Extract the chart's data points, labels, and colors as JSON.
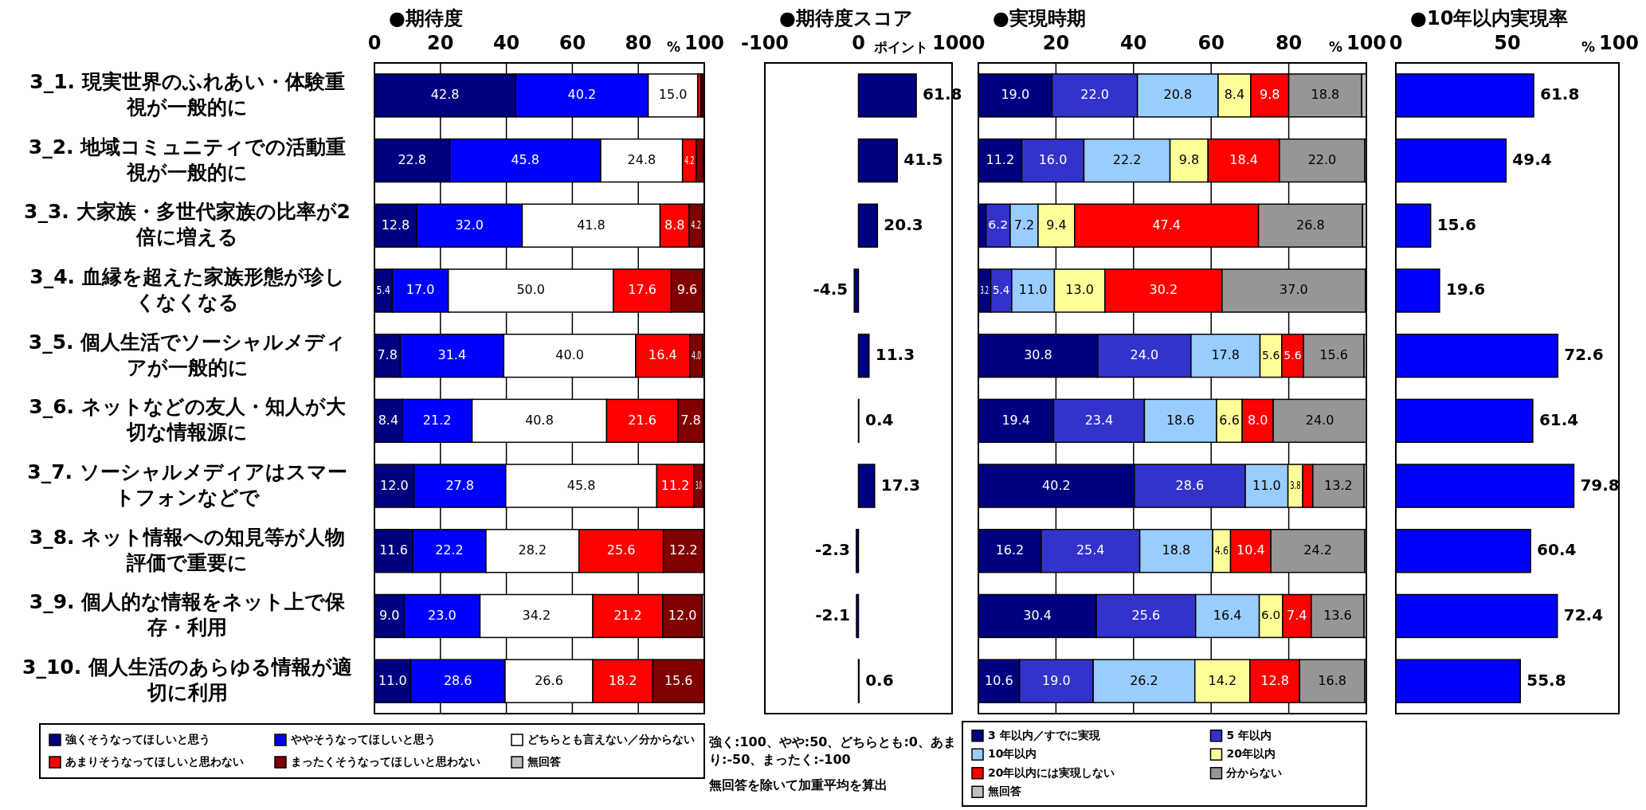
{
  "chart_data": [
    {
      "type": "bar",
      "orientation": "horizontal",
      "stacked": true,
      "title": "●期待度",
      "xlabel": "%",
      "xlim": [
        0,
        100
      ],
      "xticks": [
        0,
        20,
        40,
        60,
        80,
        100
      ],
      "grid": "x",
      "legend": "bottom",
      "categories": [
        "3_1. 現実世界のふれあい・体験重視が一般的に",
        "3_2. 地域コミュニティでの活動重視が一般的に",
        "3_3. 大家族・多世代家族の比率が2倍に増える",
        "3_4. 血縁を超えた家族形態が珍しくなくなる",
        "3_5. 個人生活でソーシャルメディアが一般的に",
        "3_6. ネットなどの友人・知人が大切な情報源に",
        "3_7. ソーシャルメディアはスマートフォンなどで",
        "3_8. ネット情報への知見等が人物評価で重要に",
        "3_9. 個人的な情報をネット上で保存・利用",
        "3_10. 個人生活のあらゆる情報が適切に利用"
      ],
      "series": [
        {
          "name": "強くそうなってほしいと思う",
          "color": "#000080",
          "values": [
            42.8,
            22.8,
            12.8,
            5.4,
            7.8,
            8.4,
            12.0,
            11.6,
            9.0,
            11.0
          ],
          "value_labels": [
            "42.8",
            "22.8",
            "12.8",
            "5.4",
            "7.8",
            "8.4",
            "12.0",
            "11.6",
            "9.0",
            "11.0"
          ]
        },
        {
          "name": "ややそうなってほしいと思う",
          "color": "#0000ff",
          "values": [
            40.2,
            45.8,
            32.0,
            17.0,
            31.4,
            21.2,
            27.8,
            22.2,
            23.0,
            28.6
          ],
          "value_labels": [
            "40.2",
            "45.8",
            "32.0",
            "17.0",
            "31.4",
            "21.2",
            "27.8",
            "22.2",
            "23.0",
            "28.6"
          ]
        },
        {
          "name": "どちらとも言えない／分からない",
          "color": "#ffffff",
          "values": [
            15.0,
            24.8,
            41.8,
            50.0,
            40.0,
            40.8,
            45.8,
            28.2,
            34.2,
            26.6
          ],
          "value_labels": [
            "15.0",
            "24.8",
            "41.8",
            "50.0",
            "40.0",
            "40.8",
            "45.8",
            "28.2",
            "34.2",
            "26.6"
          ]
        },
        {
          "name": "あまりそうなってほしいと思わない",
          "color": "#ff0000",
          "values": [
            1.0,
            4.2,
            8.8,
            17.6,
            16.4,
            21.6,
            11.2,
            25.6,
            21.2,
            18.2
          ],
          "value_labels": [
            null,
            "4.2",
            "8.8",
            "17.6",
            "16.4",
            "21.6",
            "11.2",
            "25.6",
            "21.2",
            "18.2"
          ]
        },
        {
          "name": "まったくそうなってほしいと思わない",
          "color": "#800000",
          "values": [
            0.6,
            2.2,
            4.2,
            9.6,
            4.0,
            7.8,
            3.0,
            12.2,
            12.0,
            15.6
          ],
          "value_labels": [
            null,
            null,
            "4.2",
            "9.6",
            "4.0",
            "7.8",
            "3.0",
            "12.2",
            "12.0",
            "15.6"
          ]
        },
        {
          "name": "無回答",
          "color": "#c0c0c0",
          "values": [
            0.4,
            0.2,
            0.4,
            0.4,
            0.4,
            0.2,
            0.2,
            0.2,
            0.6,
            0.0
          ]
        }
      ]
    },
    {
      "type": "bar",
      "orientation": "horizontal",
      "title": "●期待度スコア",
      "xlabel": "ポイント",
      "xlim": [
        -100,
        100
      ],
      "xticks": [
        -100,
        0,
        100
      ],
      "tick_labels": "x",
      "data_labels": true,
      "categories": [
        null,
        null,
        null,
        null,
        null,
        null,
        null,
        null,
        null,
        null
      ],
      "series": [
        {
          "color": "#000080",
          "values": [
            61.8,
            41.5,
            20.3,
            -4.5,
            11.3,
            0.4,
            17.3,
            -2.3,
            -2.1,
            0.6
          ]
        }
      ],
      "annotations": [
        "強く:100、やや:50、どちらとも:0、あまり:-50、まったく:-100",
        "無回答を除いて加重平均を算出"
      ]
    },
    {
      "type": "bar",
      "orientation": "horizontal",
      "stacked": true,
      "title": "●実現時期",
      "xlabel": "%",
      "xlim": [
        0,
        100
      ],
      "xticks": [
        0,
        20,
        40,
        60,
        80,
        100
      ],
      "grid": "x",
      "legend": "bottom",
      "tick_labels": "x",
      "categories": [
        null,
        null,
        null,
        null,
        null,
        null,
        null,
        null,
        null,
        null
      ],
      "series": [
        {
          "name": "3 年以内／すでに実現",
          "color": "#000080",
          "values": [
            19.0,
            11.2,
            2.0,
            3.2,
            30.8,
            19.4,
            40.2,
            16.2,
            30.4,
            10.6
          ],
          "value_labels": [
            "19.0",
            "11.2",
            null,
            "3.2",
            "30.8",
            "19.4",
            "40.2",
            "16.2",
            "30.4",
            "10.6"
          ]
        },
        {
          "name": "5 年以内",
          "color": "#3333cc",
          "values": [
            22.0,
            16.0,
            6.2,
            5.4,
            24.0,
            23.4,
            28.6,
            25.4,
            25.6,
            19.0
          ],
          "value_labels": [
            "22.0",
            "16.0",
            "6.2",
            "5.4",
            "24.0",
            "23.4",
            "28.6",
            "25.4",
            "25.6",
            "19.0"
          ]
        },
        {
          "name": "10年以内",
          "color": "#99ccff",
          "values": [
            20.8,
            22.2,
            7.2,
            11.0,
            17.8,
            18.6,
            11.0,
            18.8,
            16.4,
            26.2
          ],
          "value_labels": [
            "20.8",
            "22.2",
            "7.2",
            "11.0",
            "17.8",
            "18.6",
            "11.0",
            "18.8",
            "16.4",
            "26.2"
          ]
        },
        {
          "name": "20年以内",
          "color": "#ffff99",
          "values": [
            8.4,
            9.8,
            9.4,
            13.0,
            5.6,
            6.6,
            3.8,
            4.6,
            6.0,
            14.2
          ],
          "value_labels": [
            "8.4",
            "9.8",
            "9.4",
            "13.0",
            "5.6",
            "6.6",
            "3.8",
            "4.6",
            "6.0",
            "14.2"
          ]
        },
        {
          "name": "20年以内には実現しない",
          "color": "#ff0000",
          "values": [
            9.8,
            18.4,
            47.4,
            30.2,
            5.6,
            8.0,
            2.6,
            10.4,
            7.4,
            12.8
          ],
          "value_labels": [
            "9.8",
            "18.4",
            "47.4",
            "30.2",
            "5.6",
            "8.0",
            null,
            "10.4",
            "7.4",
            "12.8"
          ]
        },
        {
          "name": "分からない",
          "color": "#969696",
          "values": [
            18.8,
            22.0,
            26.8,
            37.0,
            15.6,
            24.0,
            13.2,
            24.2,
            13.6,
            16.8
          ],
          "value_labels": [
            "18.8",
            "22.0",
            "26.8",
            "37.0",
            "15.6",
            "24.0",
            "13.2",
            "24.2",
            "13.6",
            "16.8"
          ]
        },
        {
          "name": "無回答",
          "color": "#c0c0c0",
          "values": [
            1.2,
            0.4,
            1.0,
            0.2,
            0.6,
            0.0,
            0.6,
            0.4,
            0.6,
            0.4
          ]
        }
      ]
    },
    {
      "type": "bar",
      "orientation": "horizontal",
      "title": "●10年以内実現率",
      "xlabel": "%",
      "xlim": [
        0,
        100
      ],
      "xticks": [
        0,
        50,
        100
      ],
      "tick_labels": "x",
      "data_labels": true,
      "categories": [
        null,
        null,
        null,
        null,
        null,
        null,
        null,
        null,
        null,
        null
      ],
      "series": [
        {
          "color": "#0000ff",
          "values": [
            61.8,
            49.4,
            15.6,
            19.6,
            72.6,
            61.4,
            79.8,
            60.4,
            72.4,
            55.8
          ]
        }
      ]
    }
  ]
}
